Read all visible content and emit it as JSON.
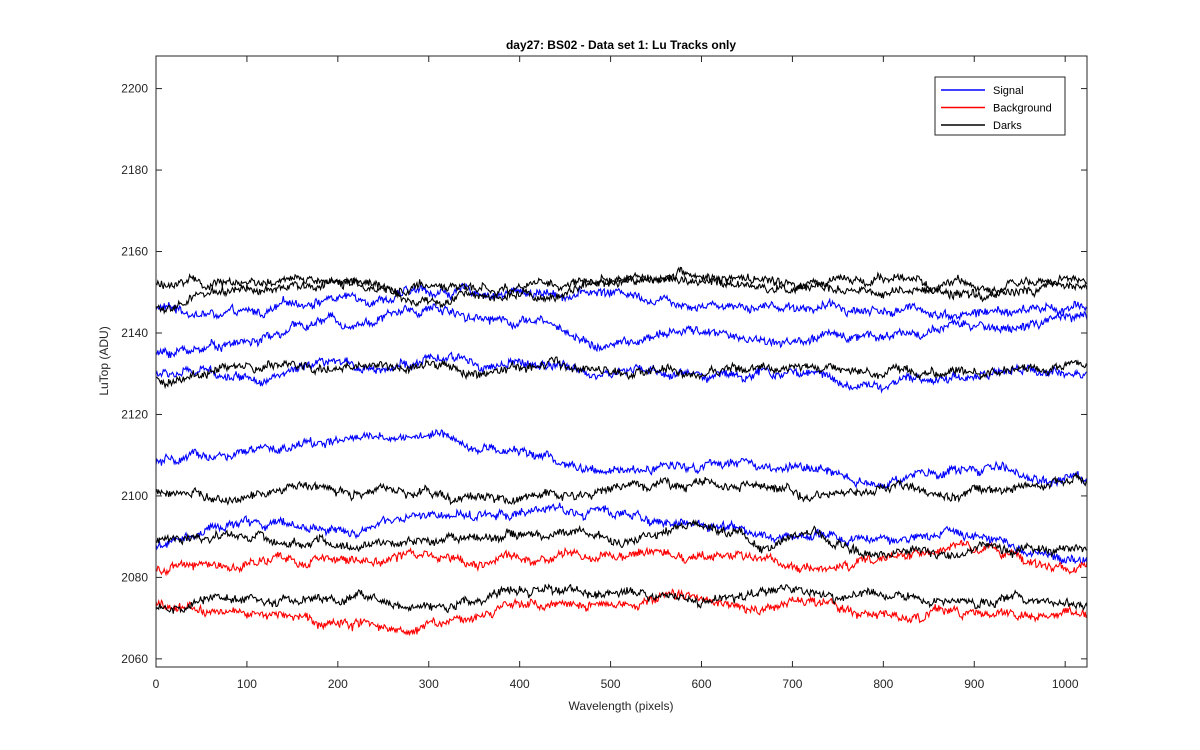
{
  "chart_data": {
    "type": "line",
    "title": "day27: BS02 - Data set 1: Lu Tracks only",
    "xlabel": "Wavelength (pixels)",
    "ylabel": "LuTop (ADU)",
    "xlim": [
      0,
      1024
    ],
    "ylim": [
      2058,
      2208
    ],
    "xticks": [
      0,
      100,
      200,
      300,
      400,
      500,
      600,
      700,
      800,
      900,
      1000
    ],
    "yticks": [
      2060,
      2080,
      2100,
      2120,
      2140,
      2160,
      2180,
      2200
    ],
    "grid": false,
    "legend_position": "top-right",
    "legend": [
      {
        "name": "Signal",
        "color": "#0000ff"
      },
      {
        "name": "Background",
        "color": "#ff0000"
      },
      {
        "name": "Darks",
        "color": "#000000"
      }
    ],
    "series": [
      {
        "group": "Signal",
        "color": "#0000ff",
        "x": [
          0,
          100,
          200,
          300,
          400,
          500,
          600,
          700,
          800,
          900,
          1024
        ],
        "y": [
          2146,
          2144,
          2149,
          2150,
          2150,
          2150,
          2148,
          2147,
          2146,
          2145,
          2146
        ]
      },
      {
        "group": "Signal",
        "color": "#0000ff",
        "x": [
          0,
          100,
          200,
          300,
          400,
          500,
          600,
          700,
          800,
          900,
          1024
        ],
        "y": [
          2135,
          2138,
          2143,
          2146,
          2144,
          2137,
          2140,
          2138,
          2140,
          2141,
          2143
        ]
      },
      {
        "group": "Signal",
        "color": "#0000ff",
        "x": [
          0,
          100,
          200,
          300,
          400,
          500,
          600,
          700,
          800,
          900,
          1024
        ],
        "y": [
          2130,
          2130,
          2131,
          2133,
          2132,
          2130,
          2130,
          2130,
          2127,
          2130,
          2131
        ]
      },
      {
        "group": "Signal",
        "color": "#0000ff",
        "x": [
          0,
          100,
          200,
          300,
          400,
          500,
          600,
          700,
          800,
          900,
          1024
        ],
        "y": [
          2108,
          2110,
          2113,
          2115,
          2111,
          2105,
          2108,
          2106,
          2104,
          2106,
          2104
        ]
      },
      {
        "group": "Signal",
        "color": "#0000ff",
        "x": [
          0,
          100,
          200,
          300,
          400,
          500,
          600,
          700,
          800,
          900,
          1024
        ],
        "y": [
          2088,
          2093,
          2092,
          2094,
          2096,
          2096,
          2093,
          2090,
          2089,
          2091,
          2084
        ]
      },
      {
        "group": "Background",
        "color": "#ff0000",
        "x": [
          0,
          100,
          200,
          300,
          400,
          500,
          600,
          700,
          800,
          900,
          1024
        ],
        "y": [
          2082,
          2083,
          2084,
          2086,
          2084,
          2086,
          2086,
          2084,
          2083,
          2086,
          2083
        ]
      },
      {
        "group": "Background",
        "color": "#ff0000",
        "x": [
          0,
          100,
          200,
          300,
          400,
          500,
          600,
          700,
          800,
          900,
          1024
        ],
        "y": [
          2073,
          2071,
          2070,
          2069,
          2072,
          2072,
          2075,
          2074,
          2070,
          2072,
          2071
        ]
      },
      {
        "group": "Darks",
        "color": "#000000",
        "x": [
          0,
          100,
          200,
          300,
          400,
          500,
          600,
          700,
          800,
          900,
          1024
        ],
        "y": [
          2152,
          2152,
          2153,
          2151,
          2152,
          2153,
          2153,
          2151,
          2150,
          2152,
          2150
        ]
      },
      {
        "group": "Darks",
        "color": "#000000",
        "x": [
          0,
          100,
          200,
          300,
          400,
          500,
          600,
          700,
          800,
          900,
          1024
        ],
        "y": [
          2146,
          2150,
          2152,
          2149,
          2150,
          2152,
          2154,
          2152,
          2152,
          2150,
          2152
        ]
      },
      {
        "group": "Darks",
        "color": "#000000",
        "x": [
          0,
          100,
          200,
          300,
          400,
          500,
          600,
          700,
          800,
          900,
          1024
        ],
        "y": [
          2129,
          2131,
          2132,
          2130,
          2131,
          2131,
          2132,
          2131,
          2130,
          2130,
          2132
        ]
      },
      {
        "group": "Darks",
        "color": "#000000",
        "x": [
          0,
          100,
          200,
          300,
          400,
          500,
          600,
          700,
          800,
          900,
          1024
        ],
        "y": [
          2101,
          2099,
          2101,
          2100,
          2101,
          2102,
          2103,
          2101,
          2102,
          2100,
          2103
        ]
      },
      {
        "group": "Darks",
        "color": "#000000",
        "x": [
          0,
          100,
          200,
          300,
          400,
          500,
          600,
          700,
          800,
          900,
          1024
        ],
        "y": [
          2089,
          2090,
          2087,
          2089,
          2090,
          2089,
          2092,
          2088,
          2086,
          2087,
          2086
        ]
      },
      {
        "group": "Darks",
        "color": "#000000",
        "x": [
          0,
          100,
          200,
          300,
          400,
          500,
          600,
          700,
          800,
          900,
          1024
        ],
        "y": [
          2073,
          2074,
          2076,
          2073,
          2076,
          2076,
          2074,
          2075,
          2076,
          2074,
          2074
        ]
      }
    ]
  }
}
